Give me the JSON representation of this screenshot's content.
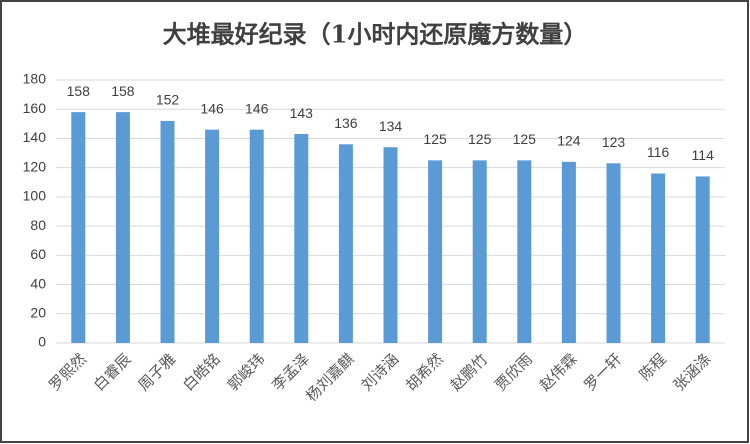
{
  "chart_data": {
    "type": "bar",
    "title": "大堆最好纪录（1小时内还原魔方数量）",
    "categories": [
      "罗熙然",
      "白睿辰",
      "周子雅",
      "白皓铭",
      "郭峻玮",
      "李孟泽",
      "杨刘嘉麒",
      "刘诗涵",
      "胡希然",
      "赵鹏竹",
      "贾欣雨",
      "赵伟霖",
      "罗一轩",
      "陈程",
      "张涵涤"
    ],
    "values": [
      158,
      158,
      152,
      146,
      146,
      143,
      136,
      134,
      125,
      125,
      125,
      124,
      123,
      116,
      114
    ],
    "color": "#5b9bd5",
    "ylim": [
      0,
      180
    ],
    "yticks": [
      0,
      20,
      40,
      60,
      80,
      100,
      120,
      140,
      160,
      180
    ],
    "grid": true
  }
}
